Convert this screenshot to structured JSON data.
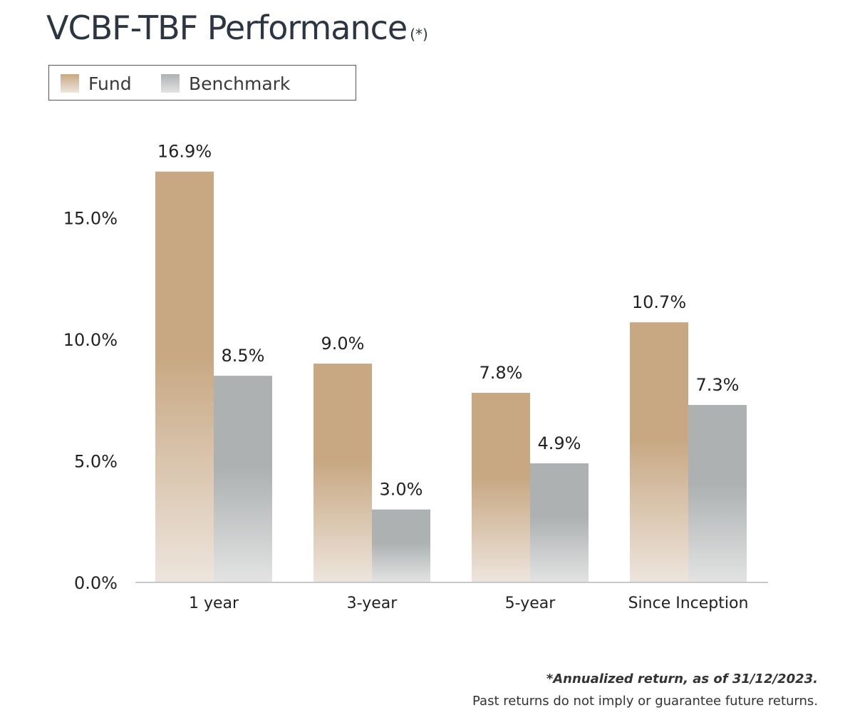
{
  "chart_data": {
    "type": "bar",
    "title": "VCBF-TBF Performance",
    "title_suffix": "(*)",
    "categories": [
      "1 year",
      "3-year",
      "5-year",
      "Since Inception"
    ],
    "series": [
      {
        "name": "Fund",
        "values": [
          16.9,
          9.0,
          7.8,
          10.7
        ],
        "labels": [
          "16.9%",
          "9.0%",
          "7.8%",
          "10.7%"
        ],
        "color": "#c8a883",
        "fade_color": "#ede5dd"
      },
      {
        "name": "Benchmark",
        "values": [
          8.5,
          3.0,
          4.9,
          7.3
        ],
        "labels": [
          "8.5%",
          "3.0%",
          "4.9%",
          "7.3%"
        ],
        "color": "#adb1b2",
        "fade_color": "#e3e3e3"
      }
    ],
    "y_ticks": [
      0,
      5,
      10,
      15
    ],
    "y_tick_labels": [
      "0.0%",
      "5.0%",
      "10.0%",
      "15.0%"
    ],
    "ylim": [
      0,
      17.5
    ],
    "xlabel": "",
    "ylabel": "",
    "grid": false,
    "legend_position": "top-left"
  },
  "footnote": {
    "line1": "*Annualized return, as of 31/12/2023.",
    "line2": "Past returns do not imply or guarantee future returns."
  }
}
